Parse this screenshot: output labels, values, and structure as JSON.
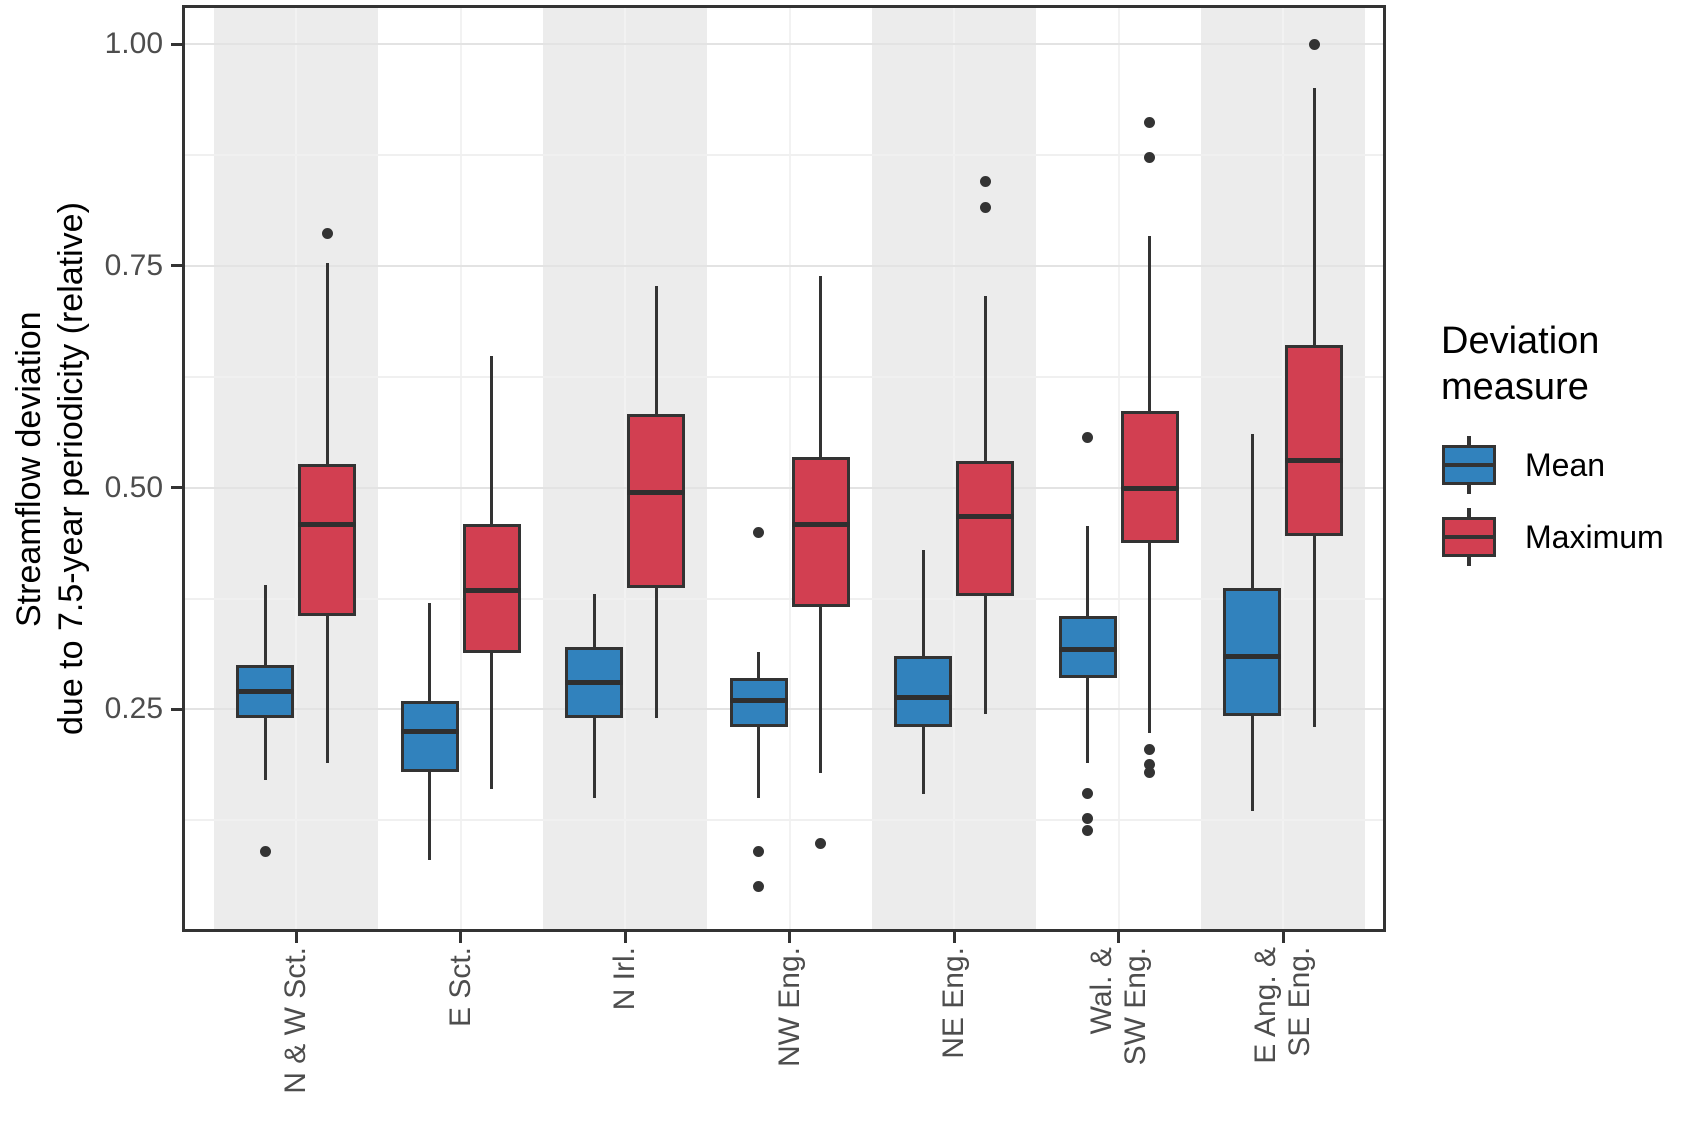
{
  "y_axis": {
    "title": "Streamflow deviation\ndue to 7.5-year periodicity (relative)",
    "tick_labels": [
      "1.00",
      "0.75",
      "0.50",
      "0.25"
    ],
    "tick_values": [
      1.0,
      0.75,
      0.5,
      0.25
    ]
  },
  "legend": {
    "title": "Deviation\nmeasure",
    "items": [
      {
        "label": "Mean",
        "color": "#3182BD"
      },
      {
        "label": "Maximum",
        "color": "#D23F51"
      }
    ]
  },
  "colors": {
    "mean_fill": "#3182BD",
    "maximum_fill": "#D23F51",
    "box_border": "#333333",
    "band": "#ececec",
    "grid_major": "#e3e3e3",
    "grid_minor": "#f0f0f0",
    "tick_label": "#4d4d4d"
  },
  "chart_data": {
    "type": "boxplot",
    "title": "",
    "xlabel": "",
    "ylabel": "Streamflow deviation due to 7.5-year periodicity (relative)",
    "ylim": [
      0.0,
      1.04
    ],
    "grid": true,
    "legend_position": "right",
    "y_major_gridlines": [
      0.25,
      0.5,
      0.75,
      1.0
    ],
    "y_minor_gridlines": [
      0.125,
      0.375,
      0.625,
      0.875
    ],
    "categories": [
      "N & W Sct.",
      "E Sct.",
      "N Irl.",
      "NW Eng.",
      "NE Eng.",
      "Wal. &\nSW Eng.",
      "E Ang. &\nSE Eng."
    ],
    "series": [
      {
        "name": "Mean",
        "color": "#3182BD",
        "boxes": [
          {
            "low": 0.17,
            "q1": 0.24,
            "median": 0.27,
            "q3": 0.3,
            "high": 0.39,
            "outliers": [
              0.09
            ]
          },
          {
            "low": 0.08,
            "q1": 0.18,
            "median": 0.225,
            "q3": 0.26,
            "high": 0.37,
            "outliers": []
          },
          {
            "low": 0.15,
            "q1": 0.24,
            "median": 0.28,
            "q3": 0.32,
            "high": 0.38,
            "outliers": []
          },
          {
            "low": 0.15,
            "q1": 0.23,
            "median": 0.26,
            "q3": 0.285,
            "high": 0.315,
            "outliers": [
              0.45,
              0.09,
              0.05
            ]
          },
          {
            "low": 0.155,
            "q1": 0.23,
            "median": 0.263,
            "q3": 0.31,
            "high": 0.43,
            "outliers": []
          },
          {
            "low": 0.19,
            "q1": 0.285,
            "median": 0.318,
            "q3": 0.355,
            "high": 0.457,
            "outliers": [
              0.556,
              0.155,
              0.127,
              0.114
            ]
          },
          {
            "low": 0.136,
            "q1": 0.243,
            "median": 0.31,
            "q3": 0.387,
            "high": 0.56,
            "outliers": []
          }
        ]
      },
      {
        "name": "Maximum",
        "color": "#D23F51",
        "boxes": [
          {
            "low": 0.19,
            "q1": 0.355,
            "median": 0.458,
            "q3": 0.527,
            "high": 0.753,
            "outliers": [
              0.786
            ]
          },
          {
            "low": 0.16,
            "q1": 0.314,
            "median": 0.384,
            "q3": 0.459,
            "high": 0.648,
            "outliers": []
          },
          {
            "low": 0.24,
            "q1": 0.387,
            "median": 0.495,
            "q3": 0.583,
            "high": 0.727,
            "outliers": []
          },
          {
            "low": 0.178,
            "q1": 0.366,
            "median": 0.459,
            "q3": 0.534,
            "high": 0.738,
            "outliers": [
              0.099
            ]
          },
          {
            "low": 0.245,
            "q1": 0.378,
            "median": 0.467,
            "q3": 0.53,
            "high": 0.716,
            "outliers": [
              0.845,
              0.816
            ]
          },
          {
            "low": 0.224,
            "q1": 0.438,
            "median": 0.499,
            "q3": 0.586,
            "high": 0.784,
            "outliers": [
              0.912,
              0.872,
              0.205,
              0.188,
              0.179
            ]
          },
          {
            "low": 0.23,
            "q1": 0.446,
            "median": 0.531,
            "q3": 0.661,
            "high": 0.95,
            "outliers": [
              1.0
            ]
          }
        ]
      }
    ]
  }
}
